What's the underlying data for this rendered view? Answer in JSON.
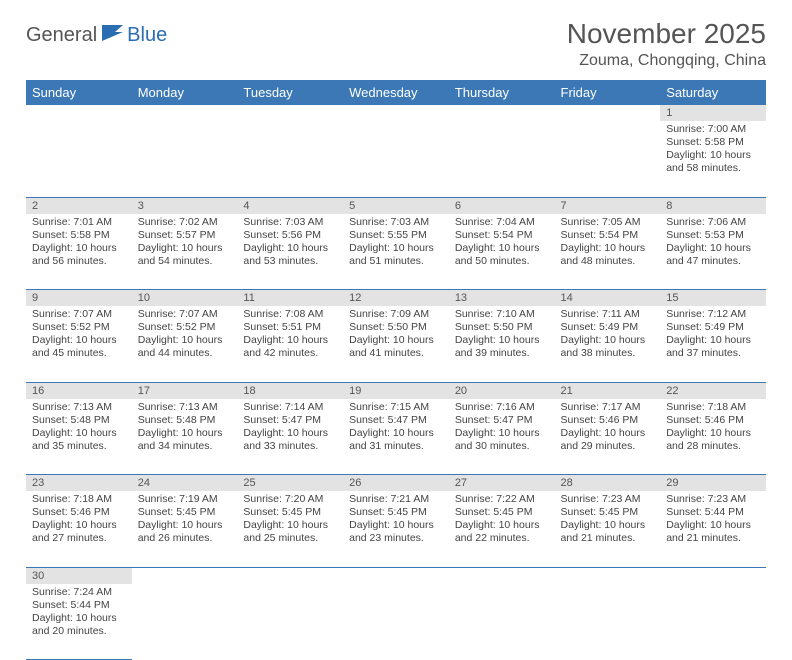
{
  "logo": {
    "text1": "General",
    "text2": "Blue"
  },
  "title": "November 2025",
  "location": "Zouma, Chongqing, China",
  "colors": {
    "header_bg": "#3b78b5",
    "header_fg": "#ffffff",
    "daynum_bg": "#e3e3e3",
    "rule": "#3b78b5",
    "text": "#444444",
    "title_text": "#555555",
    "logo_gray": "#555555",
    "logo_blue": "#2a6db0"
  },
  "weekdays": [
    "Sunday",
    "Monday",
    "Tuesday",
    "Wednesday",
    "Thursday",
    "Friday",
    "Saturday"
  ],
  "weeks": [
    [
      null,
      null,
      null,
      null,
      null,
      null,
      {
        "n": "1",
        "sunrise": "7:00 AM",
        "sunset": "5:58 PM",
        "daylight": "10 hours and 58 minutes."
      }
    ],
    [
      {
        "n": "2",
        "sunrise": "7:01 AM",
        "sunset": "5:58 PM",
        "daylight": "10 hours and 56 minutes."
      },
      {
        "n": "3",
        "sunrise": "7:02 AM",
        "sunset": "5:57 PM",
        "daylight": "10 hours and 54 minutes."
      },
      {
        "n": "4",
        "sunrise": "7:03 AM",
        "sunset": "5:56 PM",
        "daylight": "10 hours and 53 minutes."
      },
      {
        "n": "5",
        "sunrise": "7:03 AM",
        "sunset": "5:55 PM",
        "daylight": "10 hours and 51 minutes."
      },
      {
        "n": "6",
        "sunrise": "7:04 AM",
        "sunset": "5:54 PM",
        "daylight": "10 hours and 50 minutes."
      },
      {
        "n": "7",
        "sunrise": "7:05 AM",
        "sunset": "5:54 PM",
        "daylight": "10 hours and 48 minutes."
      },
      {
        "n": "8",
        "sunrise": "7:06 AM",
        "sunset": "5:53 PM",
        "daylight": "10 hours and 47 minutes."
      }
    ],
    [
      {
        "n": "9",
        "sunrise": "7:07 AM",
        "sunset": "5:52 PM",
        "daylight": "10 hours and 45 minutes."
      },
      {
        "n": "10",
        "sunrise": "7:07 AM",
        "sunset": "5:52 PM",
        "daylight": "10 hours and 44 minutes."
      },
      {
        "n": "11",
        "sunrise": "7:08 AM",
        "sunset": "5:51 PM",
        "daylight": "10 hours and 42 minutes."
      },
      {
        "n": "12",
        "sunrise": "7:09 AM",
        "sunset": "5:50 PM",
        "daylight": "10 hours and 41 minutes."
      },
      {
        "n": "13",
        "sunrise": "7:10 AM",
        "sunset": "5:50 PM",
        "daylight": "10 hours and 39 minutes."
      },
      {
        "n": "14",
        "sunrise": "7:11 AM",
        "sunset": "5:49 PM",
        "daylight": "10 hours and 38 minutes."
      },
      {
        "n": "15",
        "sunrise": "7:12 AM",
        "sunset": "5:49 PM",
        "daylight": "10 hours and 37 minutes."
      }
    ],
    [
      {
        "n": "16",
        "sunrise": "7:13 AM",
        "sunset": "5:48 PM",
        "daylight": "10 hours and 35 minutes."
      },
      {
        "n": "17",
        "sunrise": "7:13 AM",
        "sunset": "5:48 PM",
        "daylight": "10 hours and 34 minutes."
      },
      {
        "n": "18",
        "sunrise": "7:14 AM",
        "sunset": "5:47 PM",
        "daylight": "10 hours and 33 minutes."
      },
      {
        "n": "19",
        "sunrise": "7:15 AM",
        "sunset": "5:47 PM",
        "daylight": "10 hours and 31 minutes."
      },
      {
        "n": "20",
        "sunrise": "7:16 AM",
        "sunset": "5:47 PM",
        "daylight": "10 hours and 30 minutes."
      },
      {
        "n": "21",
        "sunrise": "7:17 AM",
        "sunset": "5:46 PM",
        "daylight": "10 hours and 29 minutes."
      },
      {
        "n": "22",
        "sunrise": "7:18 AM",
        "sunset": "5:46 PM",
        "daylight": "10 hours and 28 minutes."
      }
    ],
    [
      {
        "n": "23",
        "sunrise": "7:18 AM",
        "sunset": "5:46 PM",
        "daylight": "10 hours and 27 minutes."
      },
      {
        "n": "24",
        "sunrise": "7:19 AM",
        "sunset": "5:45 PM",
        "daylight": "10 hours and 26 minutes."
      },
      {
        "n": "25",
        "sunrise": "7:20 AM",
        "sunset": "5:45 PM",
        "daylight": "10 hours and 25 minutes."
      },
      {
        "n": "26",
        "sunrise": "7:21 AM",
        "sunset": "5:45 PM",
        "daylight": "10 hours and 23 minutes."
      },
      {
        "n": "27",
        "sunrise": "7:22 AM",
        "sunset": "5:45 PM",
        "daylight": "10 hours and 22 minutes."
      },
      {
        "n": "28",
        "sunrise": "7:23 AM",
        "sunset": "5:45 PM",
        "daylight": "10 hours and 21 minutes."
      },
      {
        "n": "29",
        "sunrise": "7:23 AM",
        "sunset": "5:44 PM",
        "daylight": "10 hours and 21 minutes."
      }
    ],
    [
      {
        "n": "30",
        "sunrise": "7:24 AM",
        "sunset": "5:44 PM",
        "daylight": "10 hours and 20 minutes."
      },
      null,
      null,
      null,
      null,
      null,
      null
    ]
  ],
  "labels": {
    "sunrise": "Sunrise: ",
    "sunset": "Sunset: ",
    "daylight": "Daylight: "
  }
}
